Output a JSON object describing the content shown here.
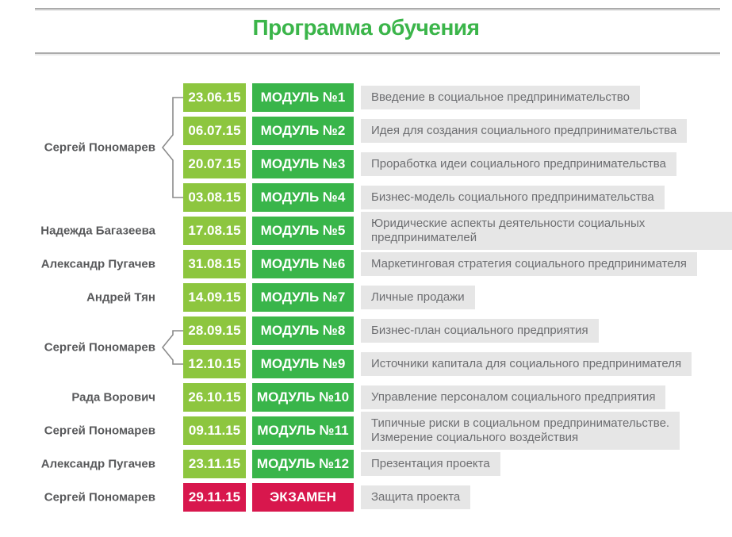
{
  "page": {
    "title": "Программа обучения"
  },
  "colors": {
    "title": "#3BB54A",
    "date_badge": "#8DC63F",
    "module_badge": "#39B54A",
    "exam_badge": "#D8174D",
    "description_bg": "#E6E6E6",
    "description_text": "#6D6E71",
    "speaker_text": "#58595B",
    "bracket_line": "#8C8C8C"
  },
  "schedule": {
    "rows": [
      {
        "date": "23.06.15",
        "label": "МОДУЛЬ №1",
        "description": "Введение в социальное предпринимательство",
        "type": "module"
      },
      {
        "date": "06.07.15",
        "label": "МОДУЛЬ №2",
        "description": "Идея для создания социального предпринимательства",
        "type": "module"
      },
      {
        "date": "20.07.15",
        "label": "МОДУЛЬ №3",
        "description": "Проработка идеи социального предпринимательства",
        "type": "module"
      },
      {
        "date": "03.08.15",
        "label": "МОДУЛЬ №4",
        "description": "Бизнес-модель социального предпринимательства",
        "type": "module"
      },
      {
        "date": "17.08.15",
        "label": "МОДУЛЬ №5",
        "description": "Юридические аспекты деятельности социальных предпринимателей",
        "type": "module"
      },
      {
        "date": "31.08.15",
        "label": "МОДУЛЬ №6",
        "description": "Маркетинговая стратегия социального предпринимателя",
        "type": "module"
      },
      {
        "date": "14.09.15",
        "label": "МОДУЛЬ №7",
        "description": "Личные продажи",
        "type": "module"
      },
      {
        "date": "28.09.15",
        "label": "МОДУЛЬ №8",
        "description": "Бизнес-план социального предприятия",
        "type": "module"
      },
      {
        "date": "12.10.15",
        "label": "МОДУЛЬ №9",
        "description": "Источники капитала для социального предпринимателя",
        "type": "module"
      },
      {
        "date": "26.10.15",
        "label": "МОДУЛЬ №10",
        "description": "Управление персоналом социального предприятия",
        "type": "module"
      },
      {
        "date": "09.11.15",
        "label": "МОДУЛЬ №11",
        "description": "Типичные риски в социальном предпринимательстве.\nИзмерение социального воздействия",
        "type": "module"
      },
      {
        "date": "23.11.15",
        "label": "МОДУЛЬ №12",
        "description": "Презентация проекта",
        "type": "module"
      },
      {
        "date": "29.11.15",
        "label": "ЭКЗАМЕН",
        "description": "Защита проекта",
        "type": "exam"
      }
    ],
    "speakers": [
      {
        "name": "Сергей Пономарев",
        "row_start": 1,
        "row_end": 4
      },
      {
        "name": "Надежда Багазеева",
        "row_start": 5,
        "row_end": 5
      },
      {
        "name": "Александр Пугачев",
        "row_start": 6,
        "row_end": 6
      },
      {
        "name": "Андрей Тян",
        "row_start": 7,
        "row_end": 7
      },
      {
        "name": "Сергей Пономарев",
        "row_start": 8,
        "row_end": 9
      },
      {
        "name": "Рада Ворович",
        "row_start": 10,
        "row_end": 10
      },
      {
        "name": "Сергей Пономарев",
        "row_start": 11,
        "row_end": 11
      },
      {
        "name": "Александр Пугачев",
        "row_start": 12,
        "row_end": 12
      },
      {
        "name": "Сергей Пономарев",
        "row_start": 13,
        "row_end": 13
      }
    ]
  }
}
